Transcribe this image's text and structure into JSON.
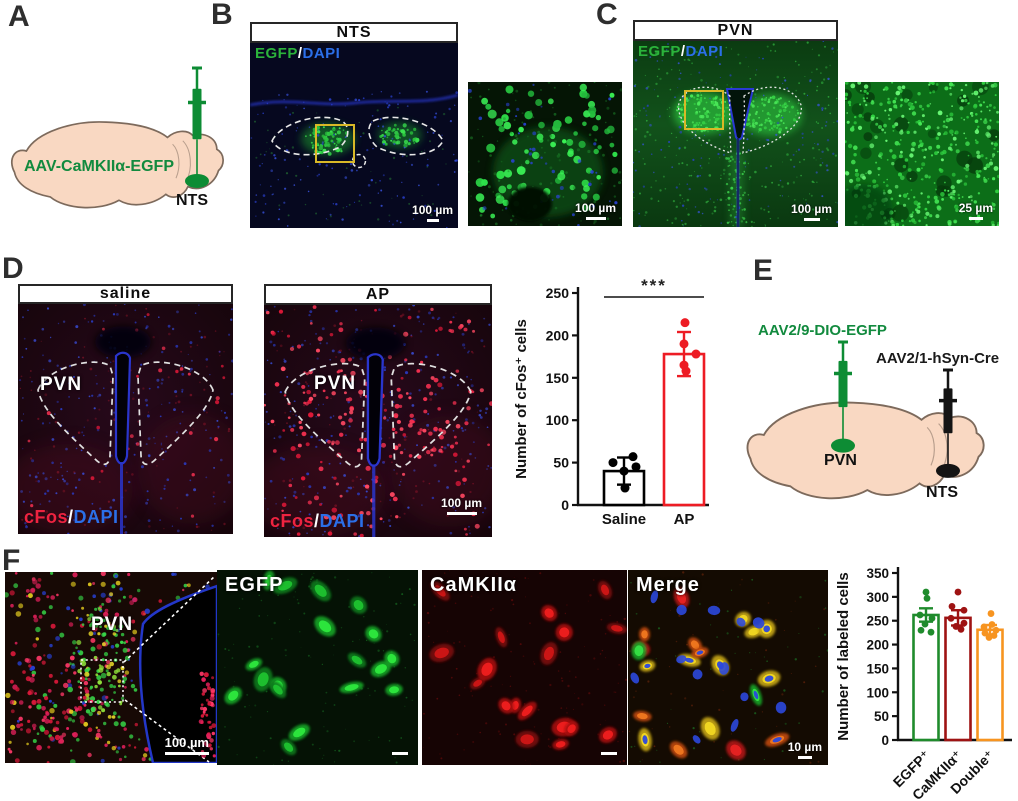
{
  "figure": {
    "panels": {
      "A": {
        "label": "A",
        "virus": "AAV-CaMKIIα-EGFP",
        "region": "NTS"
      },
      "B": {
        "label": "B",
        "title": "NTS",
        "stain": {
          "green": "EGFP",
          "sep": "/",
          "blue": "DAPI"
        },
        "scalebar": "100 µm",
        "inset_scalebar": "100 µm"
      },
      "C": {
        "label": "C",
        "title": "PVN",
        "stain": {
          "green": "EGFP",
          "sep": "/",
          "blue": "DAPI"
        },
        "scalebar": "100 µm",
        "inset_scalebar": "25 µm"
      },
      "D": {
        "label": "D",
        "saline": {
          "title": "saline",
          "region": "PVN",
          "stain": {
            "red": "cFos",
            "sep": "/",
            "blue": "DAPI"
          }
        },
        "ap": {
          "title": "AP",
          "region": "PVN",
          "stain": {
            "red": "cFos",
            "sep": "/",
            "blue": "DAPI"
          },
          "scalebar": "100 µm"
        }
      },
      "E": {
        "label": "E",
        "virus_green": "AAV2/9-DIO-EGFP",
        "virus_black": "AAV2/1-hSyn-Cre",
        "region_green": "PVN",
        "region_black": "NTS"
      },
      "F": {
        "label": "F",
        "overview": {
          "region": "PVN",
          "scalebar": "100 µm"
        },
        "channels": [
          {
            "title": "EGFP"
          },
          {
            "title": "CaMKIIα"
          },
          {
            "title": "Merge",
            "scalebar": "10 µm"
          }
        ]
      }
    },
    "colors": {
      "egfp_green": "#2bb33b",
      "dapi_blue": "#2b6fe8",
      "cfos_red": "#ee2340",
      "box_yellow": "#d8b827",
      "brain_fill": "#f9d8c2",
      "syringe_green": "#0d8c34",
      "syringe_black": "#141414",
      "bar_black": "#000000",
      "bar_red": "#ed1c24",
      "bar_green": "#1f8b2c",
      "bar_darkred": "#9e1313",
      "bar_orange": "#f79420"
    }
  },
  "chart_data": [
    {
      "type": "bar",
      "id": "cfos",
      "title": "",
      "xlabel": "",
      "ylabel": "Number of cFos⁺ cells",
      "ylim": [
        0,
        250
      ],
      "yticks": [
        0,
        50,
        100,
        150,
        200,
        250
      ],
      "grid": false,
      "categories": [
        "Saline",
        "AP"
      ],
      "values": [
        40,
        178
      ],
      "errors": [
        16,
        26
      ],
      "points": [
        [
          50,
          57,
          45,
          40,
          20
        ],
        [
          215,
          190,
          178,
          165,
          158
        ]
      ],
      "bar_colors": [
        "#000000",
        "#ed1c24"
      ],
      "significance": {
        "label": "***",
        "between": [
          0,
          1
        ]
      }
    },
    {
      "type": "bar",
      "id": "labeled",
      "title": "",
      "xlabel": "",
      "ylabel": "Number of labeled cells",
      "ylim": [
        0,
        350
      ],
      "yticks": [
        0,
        50,
        100,
        150,
        200,
        250,
        300,
        350
      ],
      "grid": false,
      "categories": [
        "EGFP⁺",
        "CaMKIIα⁺",
        "Double⁺"
      ],
      "values": [
        262,
        256,
        231
      ],
      "errors": [
        14,
        16,
        10
      ],
      "points": [
        [
          310,
          297,
          262,
          255,
          243,
          230,
          226
        ],
        [
          310,
          280,
          272,
          255,
          245,
          238,
          232
        ],
        [
          265,
          242,
          237,
          230,
          224,
          219,
          215
        ]
      ],
      "bar_colors": [
        "#1f8b2c",
        "#9e1313",
        "#f79420"
      ],
      "significance": null
    }
  ]
}
